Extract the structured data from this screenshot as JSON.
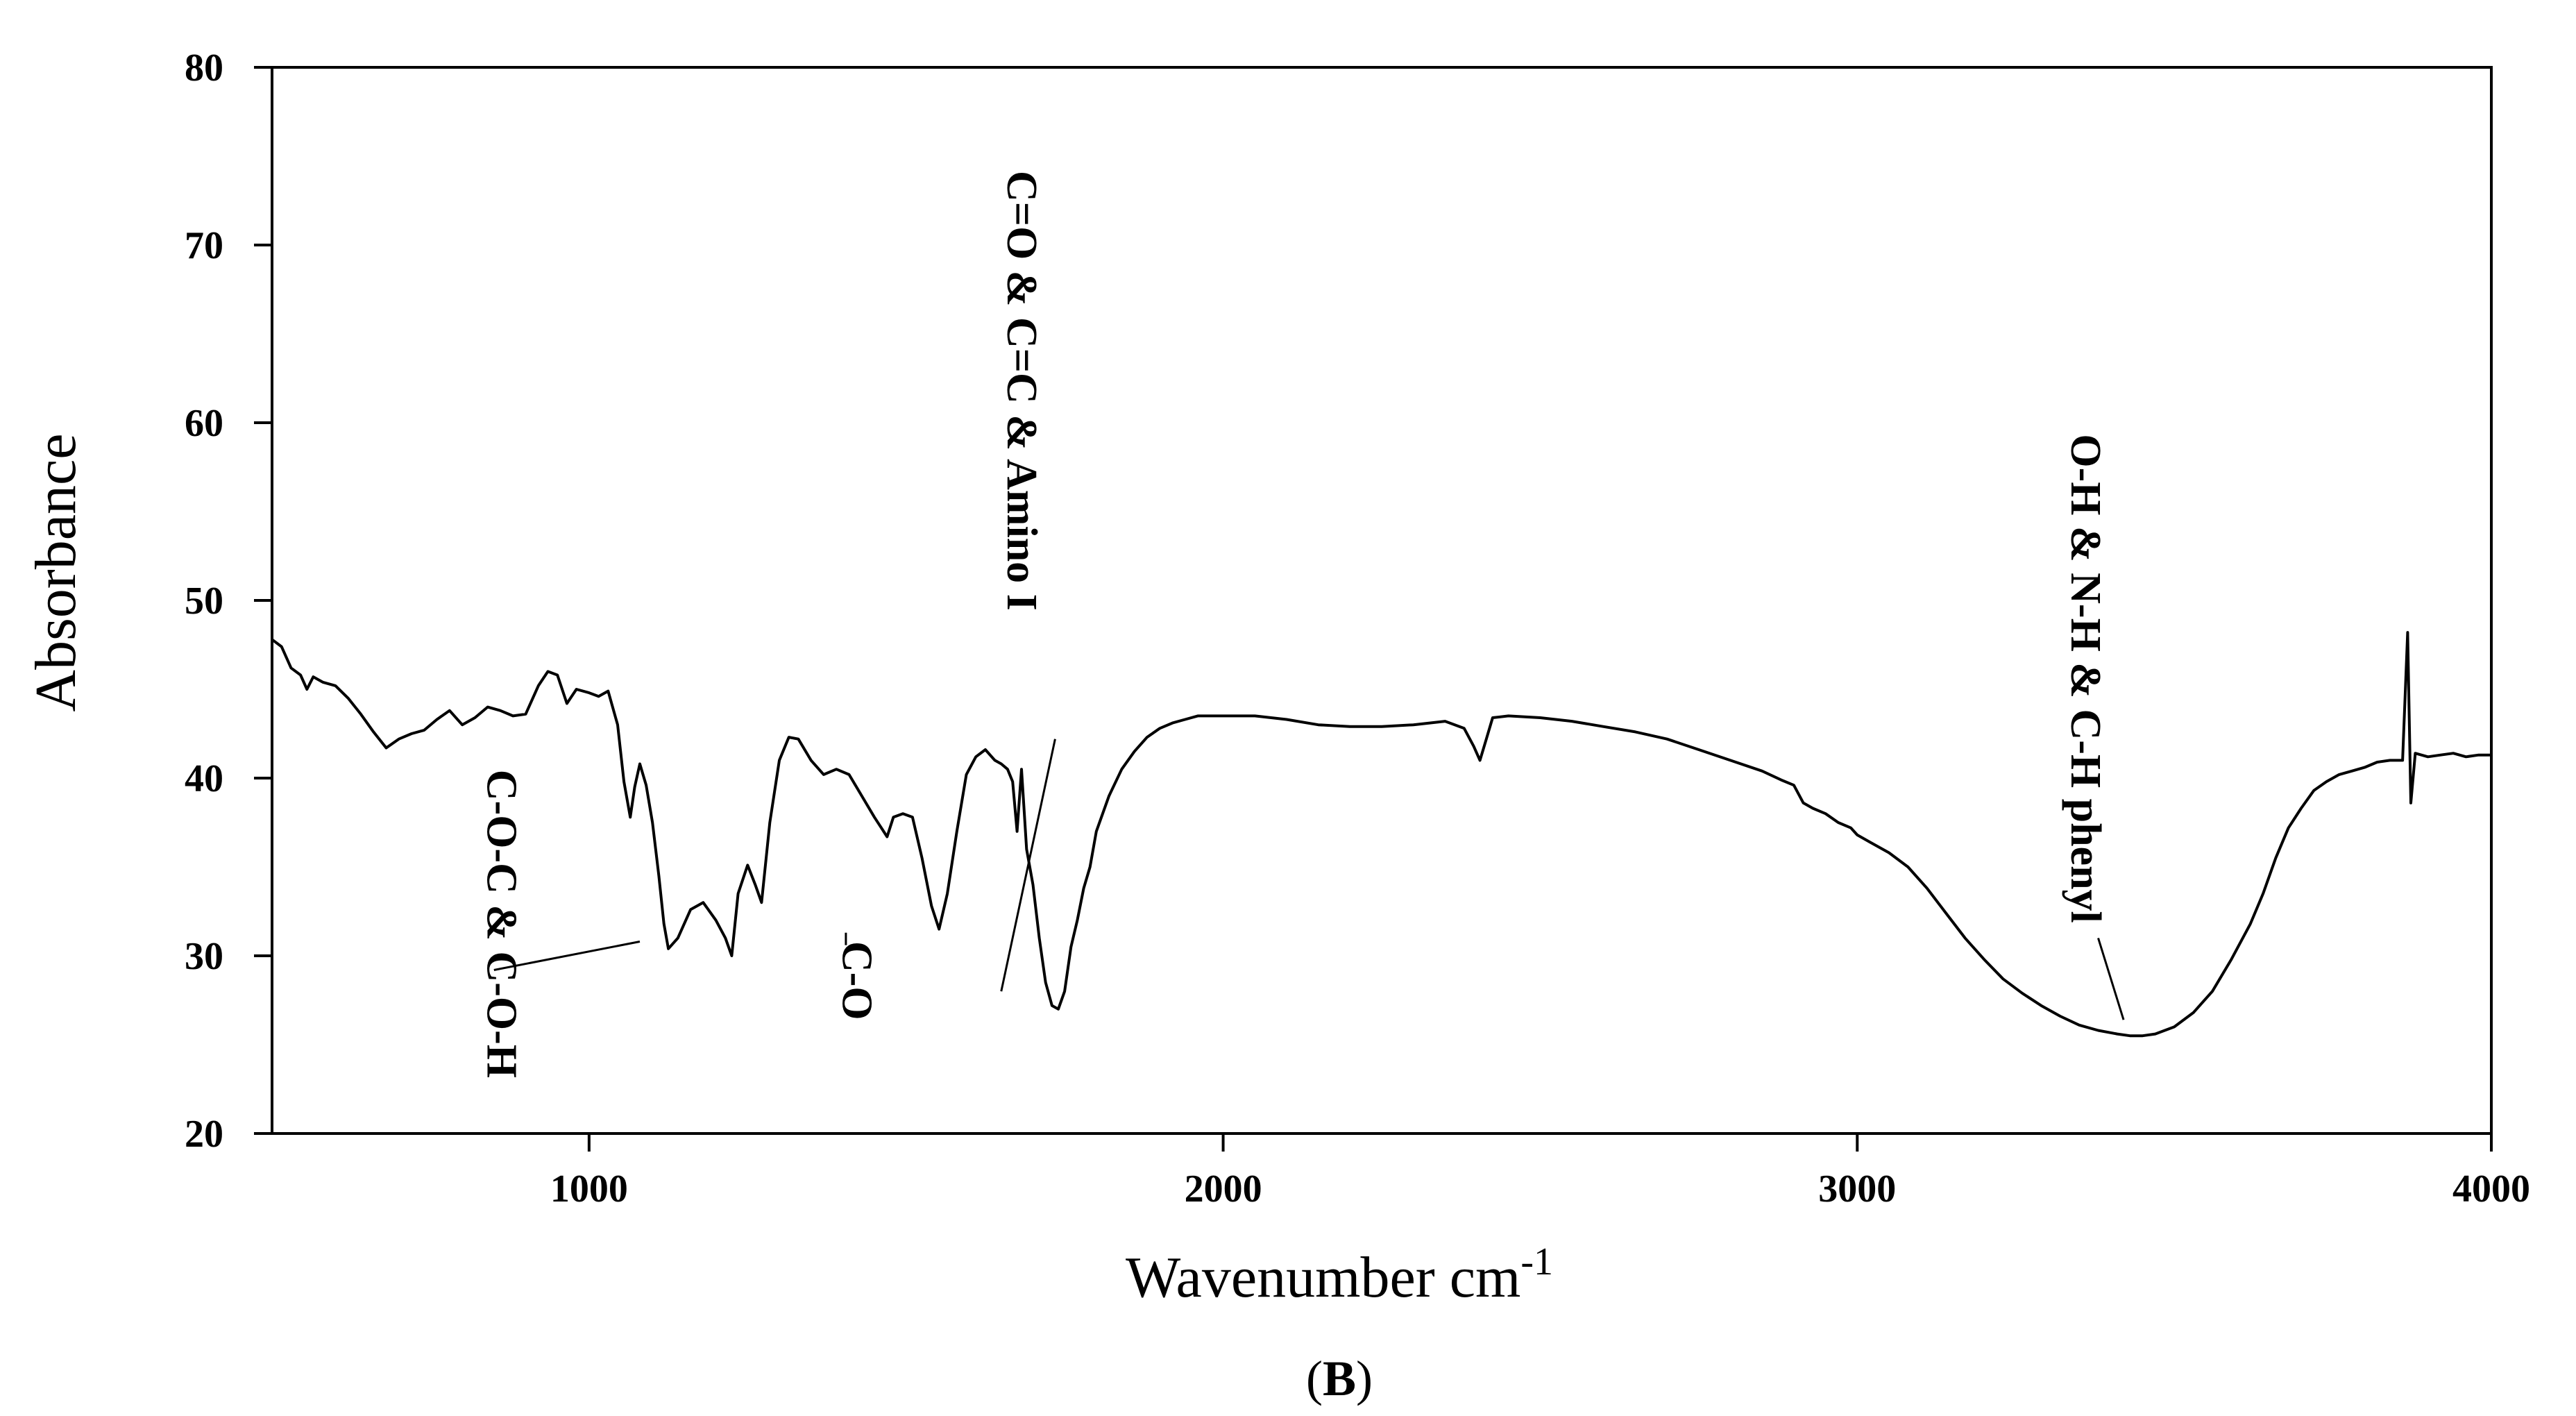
{
  "chart_data": {
    "type": "line",
    "title": "",
    "xlabel": "Wavenumber cm",
    "xlabel_sup": "-1",
    "ylabel": "Absorbance",
    "xlim": [
      500,
      4000
    ],
    "ylim": [
      20,
      80
    ],
    "xticks": [
      1000,
      2000,
      3000,
      4000
    ],
    "yticks": [
      20,
      30,
      40,
      50,
      60,
      70,
      80
    ],
    "grid": false,
    "legend": "none",
    "line_color": "#000000",
    "panel_label": "(B)",
    "panel_letter": "B",
    "series": [
      {
        "points": [
          [
            500,
            47.8
          ],
          [
            515,
            47.4
          ],
          [
            530,
            46.2
          ],
          [
            545,
            45.8
          ],
          [
            555,
            45.0
          ],
          [
            565,
            45.7
          ],
          [
            580,
            45.4
          ],
          [
            600,
            45.2
          ],
          [
            620,
            44.5
          ],
          [
            640,
            43.6
          ],
          [
            660,
            42.6
          ],
          [
            680,
            41.7
          ],
          [
            700,
            42.2
          ],
          [
            720,
            42.5
          ],
          [
            740,
            42.7
          ],
          [
            760,
            43.3
          ],
          [
            780,
            43.8
          ],
          [
            800,
            43.0
          ],
          [
            820,
            43.4
          ],
          [
            840,
            44.0
          ],
          [
            860,
            43.8
          ],
          [
            880,
            43.5
          ],
          [
            900,
            43.6
          ],
          [
            920,
            45.2
          ],
          [
            935,
            46.0
          ],
          [
            950,
            45.8
          ],
          [
            965,
            44.2
          ],
          [
            980,
            45.0
          ],
          [
            1000,
            44.8
          ],
          [
            1015,
            44.6
          ],
          [
            1030,
            44.9
          ],
          [
            1045,
            43.0
          ],
          [
            1055,
            39.8
          ],
          [
            1065,
            37.8
          ],
          [
            1072,
            39.5
          ],
          [
            1080,
            40.8
          ],
          [
            1090,
            39.6
          ],
          [
            1100,
            37.5
          ],
          [
            1110,
            34.5
          ],
          [
            1118,
            31.8
          ],
          [
            1125,
            30.4
          ],
          [
            1140,
            31.0
          ],
          [
            1160,
            32.6
          ],
          [
            1180,
            33.0
          ],
          [
            1200,
            32.0
          ],
          [
            1215,
            31.0
          ],
          [
            1225,
            30.0
          ],
          [
            1235,
            33.5
          ],
          [
            1250,
            35.1
          ],
          [
            1262,
            34.0
          ],
          [
            1272,
            33.0
          ],
          [
            1285,
            37.5
          ],
          [
            1300,
            41.0
          ],
          [
            1315,
            42.3
          ],
          [
            1330,
            42.2
          ],
          [
            1350,
            41.0
          ],
          [
            1370,
            40.2
          ],
          [
            1390,
            40.5
          ],
          [
            1410,
            40.2
          ],
          [
            1430,
            39.0
          ],
          [
            1450,
            37.8
          ],
          [
            1470,
            36.7
          ],
          [
            1480,
            37.8
          ],
          [
            1495,
            38.0
          ],
          [
            1510,
            37.8
          ],
          [
            1525,
            35.5
          ],
          [
            1540,
            32.8
          ],
          [
            1552,
            31.5
          ],
          [
            1565,
            33.5
          ],
          [
            1580,
            37.0
          ],
          [
            1595,
            40.2
          ],
          [
            1610,
            41.2
          ],
          [
            1625,
            41.6
          ],
          [
            1640,
            41.0
          ],
          [
            1650,
            40.8
          ],
          [
            1660,
            40.5
          ],
          [
            1668,
            39.8
          ],
          [
            1675,
            37.0
          ],
          [
            1682,
            40.5
          ],
          [
            1690,
            36.0
          ],
          [
            1700,
            34.0
          ],
          [
            1710,
            31.0
          ],
          [
            1720,
            28.5
          ],
          [
            1730,
            27.2
          ],
          [
            1740,
            27.0
          ],
          [
            1750,
            28.0
          ],
          [
            1760,
            30.5
          ],
          [
            1770,
            32.0
          ],
          [
            1780,
            33.8
          ],
          [
            1790,
            35.0
          ],
          [
            1800,
            37.0
          ],
          [
            1820,
            39.0
          ],
          [
            1840,
            40.5
          ],
          [
            1860,
            41.5
          ],
          [
            1880,
            42.3
          ],
          [
            1900,
            42.8
          ],
          [
            1920,
            43.1
          ],
          [
            1940,
            43.3
          ],
          [
            1960,
            43.5
          ],
          [
            2000,
            43.5
          ],
          [
            2050,
            43.5
          ],
          [
            2100,
            43.3
          ],
          [
            2150,
            43.0
          ],
          [
            2200,
            42.9
          ],
          [
            2250,
            42.9
          ],
          [
            2300,
            43.0
          ],
          [
            2350,
            43.2
          ],
          [
            2380,
            42.8
          ],
          [
            2395,
            41.8
          ],
          [
            2405,
            41.0
          ],
          [
            2415,
            42.2
          ],
          [
            2425,
            43.4
          ],
          [
            2450,
            43.5
          ],
          [
            2500,
            43.4
          ],
          [
            2550,
            43.2
          ],
          [
            2600,
            42.9
          ],
          [
            2650,
            42.6
          ],
          [
            2700,
            42.2
          ],
          [
            2750,
            41.6
          ],
          [
            2800,
            41.0
          ],
          [
            2850,
            40.4
          ],
          [
            2880,
            39.9
          ],
          [
            2900,
            39.6
          ],
          [
            2915,
            38.6
          ],
          [
            2930,
            38.3
          ],
          [
            2950,
            38.0
          ],
          [
            2970,
            37.5
          ],
          [
            2990,
            37.2
          ],
          [
            3000,
            36.8
          ],
          [
            3020,
            36.4
          ],
          [
            3050,
            35.8
          ],
          [
            3080,
            35.0
          ],
          [
            3110,
            33.8
          ],
          [
            3140,
            32.4
          ],
          [
            3170,
            31.0
          ],
          [
            3200,
            29.8
          ],
          [
            3230,
            28.7
          ],
          [
            3260,
            27.9
          ],
          [
            3290,
            27.2
          ],
          [
            3320,
            26.6
          ],
          [
            3350,
            26.1
          ],
          [
            3380,
            25.8
          ],
          [
            3410,
            25.6
          ],
          [
            3430,
            25.5
          ],
          [
            3450,
            25.5
          ],
          [
            3470,
            25.6
          ],
          [
            3500,
            26.0
          ],
          [
            3530,
            26.8
          ],
          [
            3560,
            28.0
          ],
          [
            3590,
            29.8
          ],
          [
            3620,
            31.8
          ],
          [
            3640,
            33.5
          ],
          [
            3660,
            35.5
          ],
          [
            3680,
            37.2
          ],
          [
            3700,
            38.3
          ],
          [
            3720,
            39.3
          ],
          [
            3740,
            39.8
          ],
          [
            3760,
            40.2
          ],
          [
            3780,
            40.4
          ],
          [
            3800,
            40.6
          ],
          [
            3820,
            40.9
          ],
          [
            3840,
            41.0
          ],
          [
            3860,
            41.0
          ],
          [
            3868,
            48.2
          ],
          [
            3873,
            38.6
          ],
          [
            3880,
            41.4
          ],
          [
            3900,
            41.2
          ],
          [
            3920,
            41.3
          ],
          [
            3940,
            41.4
          ],
          [
            3960,
            41.2
          ],
          [
            3980,
            41.3
          ],
          [
            4000,
            41.3
          ]
        ]
      }
    ],
    "annotations": [
      {
        "text": "C-O-C & C-O-H",
        "rotate": 90,
        "label_at": [
          840,
          31.8
        ],
        "line_from": [
          850,
          29.2
        ],
        "line_to": [
          1080,
          30.8
        ]
      },
      {
        "text": "C-O",
        "rotate": 90,
        "label_at": [
          1400,
          28.6
        ],
        "line_from": [
          1405,
          30.6
        ],
        "line_to": [
          1405,
          31.3
        ]
      },
      {
        "text": "C=O & C=C & Amino I",
        "rotate": 90,
        "label_at": [
          1660,
          61.8
        ],
        "line_from": [
          1735,
          42.2
        ],
        "line_to": [
          1650,
          28.0
        ]
      },
      {
        "text": "O-H & N-H & C-H phenyl",
        "rotate": 90,
        "label_at": [
          3338,
          45.6
        ],
        "line_from": [
          3380,
          31.0
        ],
        "line_to": [
          3420,
          26.4
        ]
      }
    ]
  }
}
